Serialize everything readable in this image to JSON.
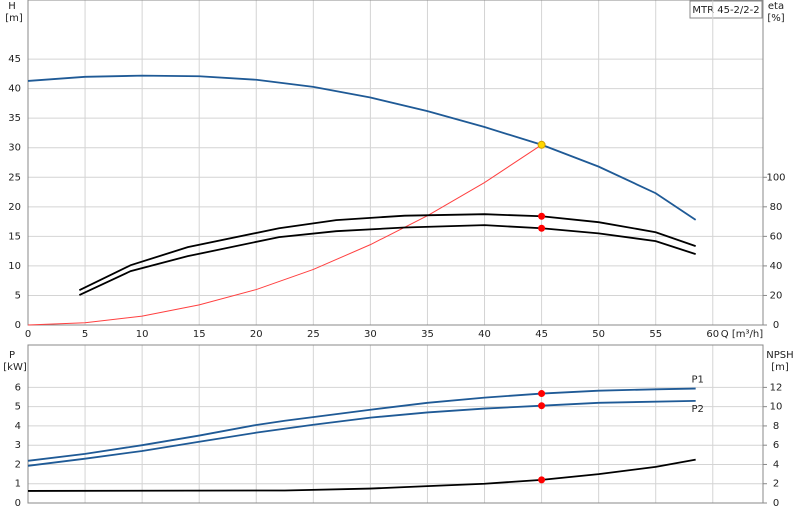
{
  "chart_data": [
    {
      "type": "line",
      "title": "MTR 45-2/2-2",
      "ylabel": "H",
      "ylabel_unit": "[m]",
      "y2label": "eta",
      "y2label_unit": "[%]",
      "xlabel": "Q [m³/h]",
      "xlim": [
        0,
        64.4
      ],
      "xticks": [
        0,
        5,
        10,
        15,
        20,
        25,
        30,
        35,
        40,
        45,
        50,
        55,
        60
      ],
      "ylim": [
        0,
        55
      ],
      "yticks": [
        0,
        5,
        10,
        15,
        20,
        25,
        30,
        35,
        40,
        45
      ],
      "y2lim": [
        0,
        220
      ],
      "y2ticks": [
        0,
        20,
        40,
        60,
        80,
        100
      ],
      "grid": true,
      "series": [
        {
          "color": "#1f5a96",
          "x": [
            0,
            5,
            10,
            15,
            20,
            25,
            30,
            35,
            40,
            45,
            50,
            55,
            58.5
          ],
          "values": [
            41.3,
            42,
            42.2,
            42.1,
            41.5,
            40.3,
            38.5,
            36.2,
            33.5,
            30.5,
            26.8,
            22.3,
            17.8
          ]
        },
        {
          "color": "#ff4040",
          "x": [
            0,
            5,
            10,
            15,
            20,
            25,
            30,
            35,
            40,
            45
          ],
          "values": [
            0,
            0.38,
            1.5,
            3.4,
            6,
            9.4,
            13.6,
            18.5,
            24.1,
            30.5
          ]
        },
        {
          "color": "#000000",
          "axis": "y2",
          "x": [
            4.5,
            9,
            14,
            22,
            27,
            33,
            40,
            45,
            50,
            55,
            58.5
          ],
          "values": [
            23.6,
            40.5,
            52.7,
            65.5,
            71,
            74,
            75,
            73.6,
            69.6,
            62.8,
            53.4
          ]
        },
        {
          "color": "#000000",
          "axis": "y2",
          "x": [
            4.5,
            9,
            14,
            22,
            27,
            33,
            40,
            45,
            50,
            55,
            58.5
          ],
          "values": [
            20.3,
            36.5,
            46.6,
            59.5,
            63.5,
            66,
            67.6,
            65.5,
            62,
            56.8,
            48
          ]
        }
      ],
      "points": [
        {
          "color": "#ffd700",
          "x": 45,
          "y": 30.5
        },
        {
          "color": "#ff0000",
          "axis": "y2",
          "x": 45,
          "y": 73.6
        },
        {
          "color": "#ff0000",
          "axis": "y2",
          "x": 45,
          "y": 65.5
        }
      ]
    },
    {
      "type": "line",
      "ylabel": "P",
      "ylabel_unit": "[kW]",
      "y2label": "NPSH",
      "y2label_unit": "[m]",
      "xlim": [
        0,
        64.4
      ],
      "ylim": [
        0,
        8.2
      ],
      "yticks": [
        0,
        1,
        2,
        3,
        4,
        5,
        6
      ],
      "y2lim": [
        0,
        16.4
      ],
      "y2ticks": [
        0,
        2,
        4,
        6,
        8,
        10,
        12
      ],
      "grid": true,
      "series": [
        {
          "name": "P1",
          "color": "#1f5a96",
          "x": [
            0,
            5,
            10,
            15,
            20,
            22.5,
            30,
            35,
            40,
            45,
            50,
            55,
            58.5
          ],
          "values": [
            2.19,
            2.55,
            3,
            3.5,
            4.05,
            4.27,
            4.84,
            5.2,
            5.47,
            5.68,
            5.83,
            5.9,
            5.94
          ]
        },
        {
          "name": "P2",
          "color": "#1f5a96",
          "x": [
            0,
            5,
            10,
            15,
            20,
            25,
            30,
            35,
            40,
            45,
            50,
            58.5
          ],
          "values": [
            1.93,
            2.3,
            2.7,
            3.18,
            3.65,
            4.06,
            4.43,
            4.7,
            4.9,
            5.05,
            5.2,
            5.3
          ]
        },
        {
          "color": "#000000",
          "axis": "y2",
          "x": [
            0,
            22.5,
            30,
            35,
            40,
            45,
            50,
            55,
            58.5
          ],
          "values": [
            1.25,
            1.3,
            1.5,
            1.75,
            2,
            2.4,
            3,
            3.75,
            4.5
          ]
        }
      ],
      "points": [
        {
          "color": "#ff0000",
          "x": 45,
          "y": 5.68
        },
        {
          "color": "#ff0000",
          "x": 45,
          "y": 5.05
        },
        {
          "color": "#ff0000",
          "axis": "y2",
          "x": 45,
          "y": 2.4
        }
      ]
    }
  ]
}
